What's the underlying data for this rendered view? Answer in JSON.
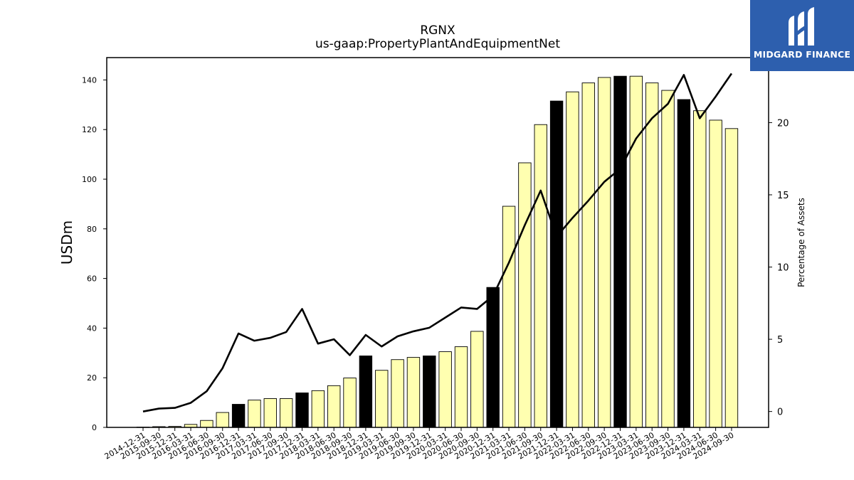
{
  "header": {
    "title": "RGNX",
    "subtitle": "us-gaap:PropertyPlantAndEquipmentNet"
  },
  "logo": {
    "name": "MIDGARD FINANCE",
    "icon": "midgard-logo-icon",
    "bg_color": "#2d5fae"
  },
  "colors": {
    "bar_fill": "#ffffb0",
    "bar_highlight": "#000000",
    "line": "#000000"
  },
  "chart_data": {
    "type": "bar",
    "title": "RGNX",
    "subtitle": "us-gaap:PropertyPlantAndEquipmentNet",
    "ylabel": "USDm",
    "y2label": "Percentage of Assets",
    "ylim": [
      0,
      149
    ],
    "y2lim": [
      -1.1,
      24.5
    ],
    "yticks": [
      0,
      20,
      40,
      60,
      80,
      100,
      120,
      140
    ],
    "y2ticks": [
      0,
      5,
      10,
      15,
      20
    ],
    "grid": false,
    "categories": [
      "2014-12-31",
      "2015-09-30",
      "2015-12-31",
      "2016-03-31",
      "2016-06-30",
      "2016-09-30",
      "2016-12-31",
      "2017-03-31",
      "2017-06-30",
      "2017-09-30",
      "2017-12-31",
      "2018-03-31",
      "2018-06-30",
      "2018-09-30",
      "2018-12-31",
      "2019-03-31",
      "2019-06-30",
      "2019-09-30",
      "2019-12-31",
      "2020-03-31",
      "2020-06-30",
      "2020-09-30",
      "2020-12-31",
      "2021-03-31",
      "2021-06-30",
      "2021-09-30",
      "2021-12-31",
      "2022-03-31",
      "2022-06-30",
      "2022-09-30",
      "2022-12-31",
      "2023-03-31",
      "2023-06-30",
      "2023-09-30",
      "2023-12-31",
      "2024-03-31",
      "2024-06-30",
      "2024-09-30"
    ],
    "series": [
      {
        "kind": "bar",
        "axis": "left",
        "values": [
          0.1,
          0.3,
          0.4,
          1.2,
          2.8,
          6.0,
          9.3,
          11.0,
          11.6,
          11.6,
          13.9,
          14.8,
          16.8,
          19.9,
          28.8,
          23.0,
          27.3,
          28.2,
          28.8,
          30.5,
          32.5,
          38.7,
          56.4,
          89.1,
          106.6,
          122.0,
          131.5,
          135.2,
          138.8,
          141.0,
          141.5,
          141.5,
          138.8,
          135.8,
          132.1,
          127.6,
          123.8,
          120.4
        ],
        "highlight": [
          false,
          false,
          false,
          false,
          false,
          false,
          true,
          false,
          false,
          false,
          true,
          false,
          false,
          false,
          true,
          false,
          false,
          false,
          true,
          false,
          false,
          false,
          true,
          false,
          false,
          false,
          true,
          false,
          false,
          false,
          true,
          false,
          false,
          false,
          true,
          false,
          false,
          false
        ]
      },
      {
        "kind": "line",
        "axis": "right",
        "values": [
          0.0,
          0.2,
          0.25,
          0.6,
          1.4,
          3.0,
          5.4,
          4.9,
          5.1,
          5.5,
          7.1,
          4.7,
          5.0,
          3.9,
          5.3,
          4.5,
          5.2,
          5.55,
          5.8,
          6.5,
          7.2,
          7.1,
          8.0,
          10.3,
          12.9,
          15.3,
          12.1,
          13.4,
          14.6,
          15.9,
          16.8,
          18.9,
          20.3,
          21.3,
          23.3,
          20.3,
          21.8,
          23.4
        ]
      }
    ]
  }
}
